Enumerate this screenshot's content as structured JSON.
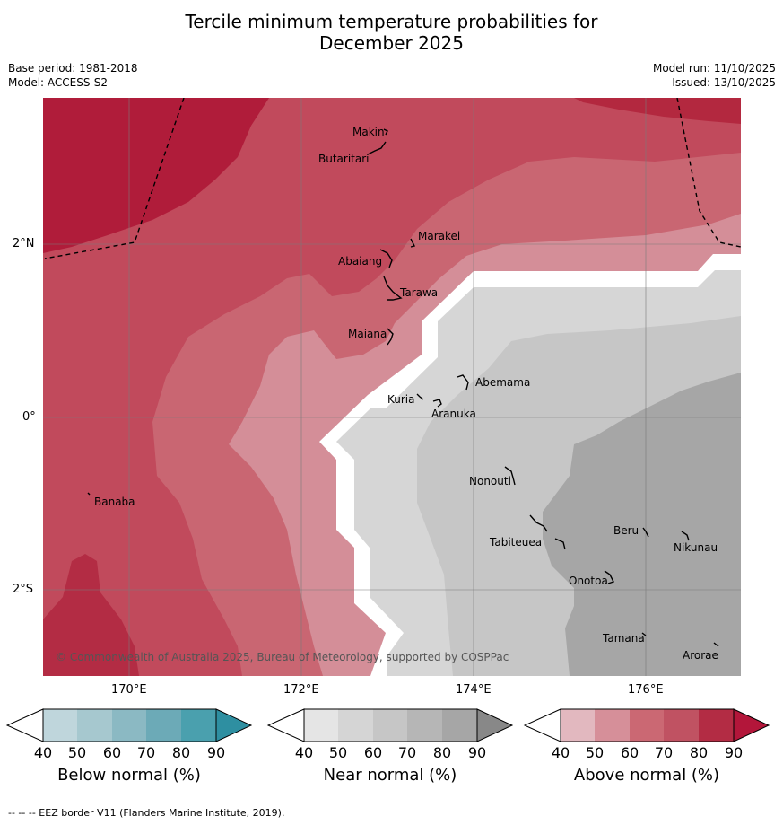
{
  "title": {
    "line1": "Tercile minimum temperature probabilities for",
    "line2": "December 2025"
  },
  "meta": {
    "base_period": "Base period: 1981-2018",
    "model": "Model: ACCESS-S2",
    "model_run": "Model run: 11/10/2025",
    "issued": "Issued: 13/10/2025"
  },
  "axes": {
    "lat_labels": [
      "2°N",
      "0°",
      "2°S"
    ],
    "lon_labels": [
      "170°E",
      "172°E",
      "174°E",
      "176°E"
    ]
  },
  "places": [
    "Makin",
    "Butaritari",
    "Marakei",
    "Abaiang",
    "Tarawa",
    "Maiana",
    "Abemama",
    "Kuria",
    "Aranuka",
    "Banaba",
    "Nonouti",
    "Tabiteuea",
    "Beru",
    "Nikunau",
    "Onotoa",
    "Tamana",
    "Arorae"
  ],
  "copyright": "© Commonwealth of Australia 2025, Bureau of Meteorology, supported by COSPPac",
  "colorbars": [
    {
      "label": "Below normal (%)",
      "ticks": [
        "40",
        "50",
        "60",
        "70",
        "80",
        "90"
      ],
      "colors": [
        "#ffffff",
        "#bfd6dc",
        "#a6c8cf",
        "#8bb9c3",
        "#6caab7",
        "#4aa0ae",
        "#2e8fa1"
      ]
    },
    {
      "label": "Near normal (%)",
      "ticks": [
        "40",
        "50",
        "60",
        "70",
        "80",
        "90"
      ],
      "colors": [
        "#ffffff",
        "#e5e5e5",
        "#d5d5d5",
        "#c6c6c6",
        "#b6b6b6",
        "#a6a6a6",
        "#888888"
      ]
    },
    {
      "label": "Above normal (%)",
      "ticks": [
        "40",
        "50",
        "60",
        "70",
        "80",
        "90"
      ],
      "colors": [
        "#ffffff",
        "#e2b8bf",
        "#d68f99",
        "#cb6873",
        "#c05262",
        "#b32c44",
        "#b3163a"
      ]
    }
  ],
  "footnote": "--  --  -- EEZ border V11 (Flanders Marine Institute, 2019)."
}
